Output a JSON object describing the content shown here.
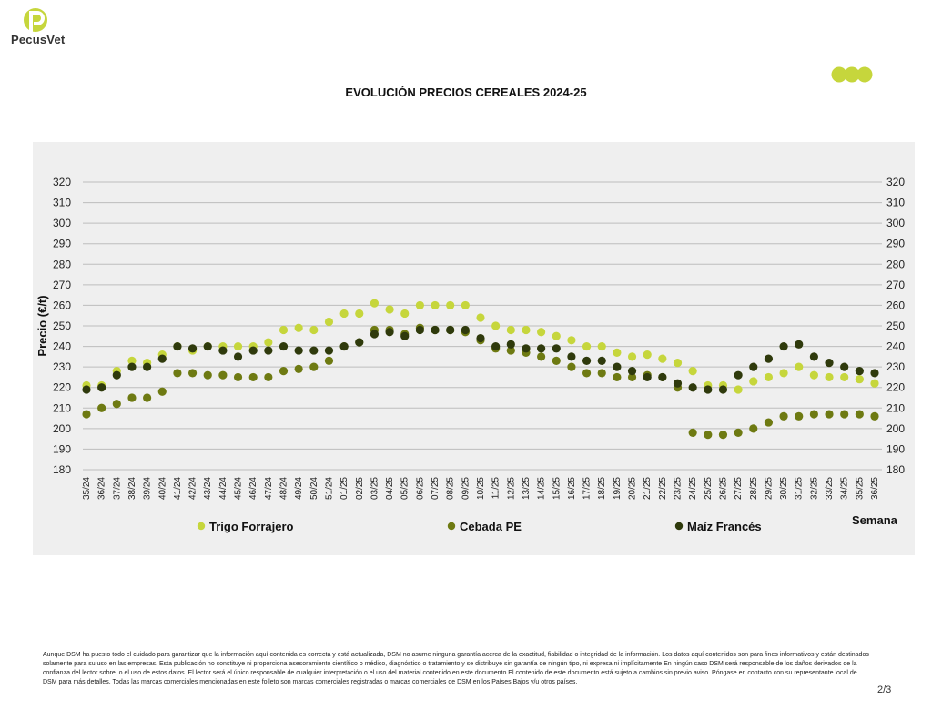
{
  "brand": {
    "name": "PecusVet",
    "color": "#c6d63c"
  },
  "title": "EVOLUCIÓN PRECIOS CEREALES 2024-25",
  "footer": {
    "disclaimer": "Aunque DSM ha puesto todo el cuidado para garantizar que la información aquí contenida es correcta y está actualizada, DSM no asume ninguna garantía acerca de la exactitud, fiabilidad o integridad de la información. Los datos aquí contenidos son para fines informativos y están destinados solamente para su uso en las empresas. Esta publicación no constituye ni proporciona asesoramiento científico o médico, diagnóstico o tratamiento y se distribuye sin garantía de ningún tipo, ni expresa ni implícitamente En ningún caso DSM será responsable de los daños derivados de la confianza del lector sobre, o el uso de estos datos. El lector será el único responsable de cualquier interpretación o el uso del material contenido en este documento El contenido de este documento está sujeto a cambios sin previo aviso. Póngase en contacto con su representante local de DSM para más detalles. Todas las marcas comerciales mencionadas en este folleto son marcas comerciales registradas o marcas comerciales de DSM en los Países Bajos y/u otros países.",
    "page": "2/3"
  },
  "chart_data": {
    "type": "scatter",
    "title": "EVOLUCIÓN PRECIOS CEREALES 2024-25",
    "xlabel": "Semana",
    "ylabel": "Precio (€/t)",
    "ylim": [
      180,
      320
    ],
    "yticks": [
      180,
      190,
      200,
      210,
      220,
      230,
      240,
      250,
      260,
      270,
      280,
      290,
      300,
      310,
      320
    ],
    "grid": true,
    "legend": "bottom",
    "categories": [
      "35/24",
      "36/24",
      "37/24",
      "38/24",
      "39/24",
      "40/24",
      "41/24",
      "42/24",
      "43/24",
      "44/24",
      "45/24",
      "46/24",
      "47/24",
      "48/24",
      "49/24",
      "50/24",
      "51/24",
      "01/25",
      "02/25",
      "03/25",
      "04/25",
      "05/25",
      "06/25",
      "07/25",
      "08/25",
      "09/25",
      "10/25",
      "11/25",
      "12/25",
      "13/25",
      "14/25",
      "15/25",
      "16/25",
      "17/25",
      "18/25",
      "19/25",
      "20/25",
      "21/25",
      "22/25",
      "23/25",
      "24/25",
      "25/25",
      "26/25",
      "27/25",
      "28/25",
      "29/25",
      "30/25",
      "31/25",
      "32/25",
      "33/25",
      "34/25",
      "35/25",
      "36/25"
    ],
    "series": [
      {
        "name": "Trigo Forrajero",
        "color": "#c6d63c",
        "values": [
          221,
          221,
          228,
          233,
          232,
          236,
          240,
          238,
          240,
          240,
          240,
          240,
          242,
          248,
          249,
          248,
          252,
          256,
          256,
          261,
          258,
          256,
          260,
          260,
          260,
          260,
          254,
          250,
          248,
          248,
          247,
          245,
          243,
          240,
          240,
          237,
          235,
          236,
          234,
          232,
          228,
          221,
          221,
          219,
          223,
          225,
          227,
          230,
          226,
          225,
          225,
          224,
          222
        ]
      },
      {
        "name": "Cebada PE",
        "color": "#6e7a12",
        "values": [
          207,
          210,
          212,
          215,
          215,
          218,
          227,
          227,
          226,
          226,
          225,
          225,
          225,
          228,
          229,
          230,
          233,
          240,
          242,
          248,
          248,
          246,
          249,
          248,
          248,
          247,
          243,
          239,
          238,
          237,
          235,
          233,
          230,
          227,
          227,
          225,
          225,
          226,
          225,
          220,
          198,
          197,
          197,
          198,
          200,
          203,
          206,
          206,
          207,
          207,
          207,
          207,
          206
        ]
      },
      {
        "name": "Maíz Francés",
        "color": "#2f3a0c",
        "values": [
          219,
          220,
          226,
          230,
          230,
          234,
          240,
          239,
          240,
          238,
          235,
          238,
          238,
          240,
          238,
          238,
          238,
          240,
          242,
          246,
          247,
          245,
          248,
          248,
          248,
          248,
          244,
          240,
          241,
          239,
          239,
          239,
          235,
          233,
          233,
          230,
          228,
          225,
          225,
          222,
          220,
          219,
          219,
          226,
          230,
          234,
          240,
          241,
          235,
          232,
          230,
          228,
          227
        ]
      }
    ]
  }
}
